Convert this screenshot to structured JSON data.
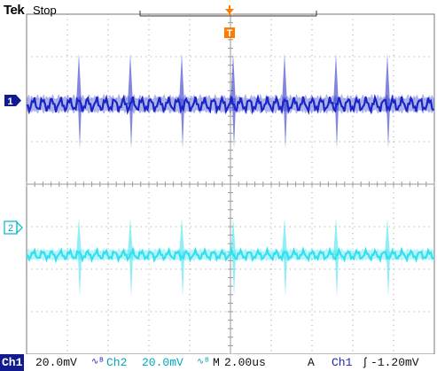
{
  "header": {
    "brand": "Tek",
    "acquisition_state": "Stop"
  },
  "markers": {
    "trigger_position": "T",
    "channel1": "1",
    "channel2": "2"
  },
  "status": {
    "ch1_label": "Ch1",
    "ch1_scale": "20.0mV",
    "ch1_coupling_icon": "ac-bw-limit-icon",
    "ch2_label": "Ch2",
    "ch2_scale": "20.0mV",
    "ch2_coupling_icon": "ac-bw-limit-icon",
    "timebase_label": "M",
    "timebase": "2.00us",
    "trigger_mode": "A",
    "trigger_source": "Ch1",
    "trigger_slope_icon": "rising-edge-icon",
    "trigger_level": "-1.20mV"
  },
  "colors": {
    "ch1": "#1a25c8",
    "ch2": "#33e0ee",
    "grid": "#9a9a9a",
    "marker": "#ff7a00"
  }
}
